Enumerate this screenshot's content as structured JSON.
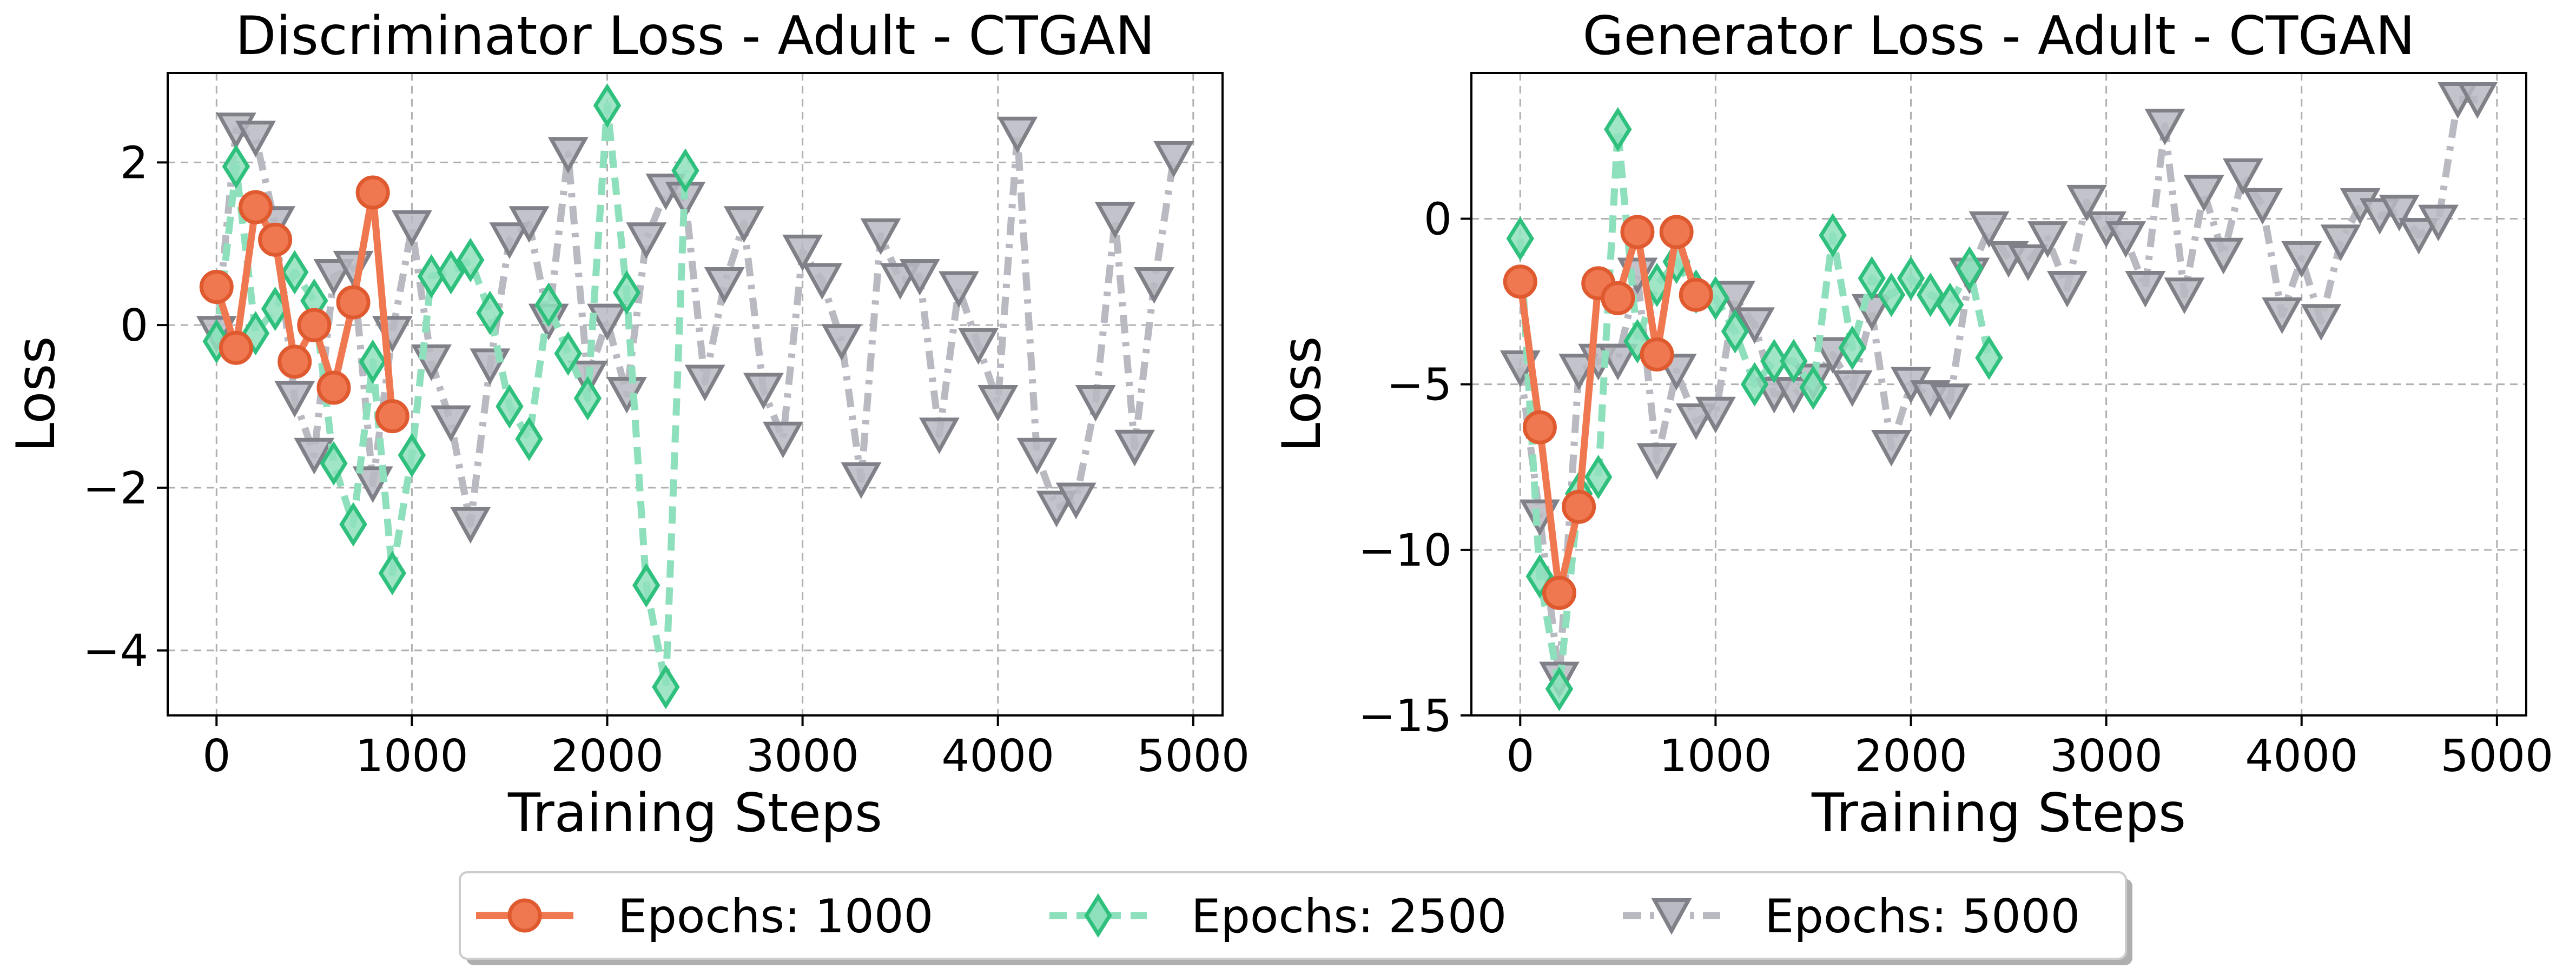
{
  "colors": {
    "e1000": "#f07850",
    "e1000_edge": "#e05a30",
    "e2500": "#8ee0bc",
    "e2500_edge": "#2ec07c",
    "e5000": "#b9b9c2",
    "e5000_edge": "#808088"
  },
  "legend": {
    "placement": "bottom-center",
    "items": [
      {
        "label": "Epochs: 1000",
        "marker": "circle",
        "line": "solid",
        "color_key": "e1000"
      },
      {
        "label": "Epochs: 2500",
        "marker": "diamond",
        "line": "dashed",
        "color_key": "e2500"
      },
      {
        "label": "Epochs: 5000",
        "marker": "triangle-down",
        "line": "dash-dot",
        "color_key": "e5000"
      }
    ]
  },
  "chart_data": [
    {
      "type": "line",
      "title": "Discriminator Loss - Adult - CTGAN",
      "xlabel": "Training Steps",
      "ylabel": "Loss",
      "xlim": [
        -250,
        5150
      ],
      "ylim": [
        -4.8,
        3.1
      ],
      "xticks": [
        0,
        1000,
        2000,
        3000,
        4000,
        5000
      ],
      "xtick_labels": [
        "0",
        "1000",
        "2000",
        "3000",
        "4000",
        "5000"
      ],
      "yticks": [
        2,
        0,
        -2,
        -4
      ],
      "ytick_labels": [
        "2",
        "0",
        "−2",
        "−4"
      ],
      "grid": true,
      "series": [
        {
          "name": "Epochs: 1000",
          "color_key": "e1000",
          "marker": "circle",
          "line": "solid",
          "x": [
            0,
            100,
            200,
            300,
            400,
            500,
            600,
            700,
            800,
            900
          ],
          "y": [
            0.47,
            -0.28,
            1.45,
            1.05,
            -0.45,
            0.0,
            -0.77,
            0.28,
            1.63,
            -1.12
          ]
        },
        {
          "name": "Epochs: 2500",
          "color_key": "e2500",
          "marker": "diamond",
          "line": "dashed",
          "x": [
            0,
            100,
            200,
            300,
            400,
            500,
            600,
            700,
            800,
            900,
            1000,
            1100,
            1200,
            1300,
            1400,
            1500,
            1600,
            1700,
            1800,
            1900,
            2000,
            2100,
            2200,
            2300,
            2400
          ],
          "y": [
            -0.2,
            1.95,
            -0.1,
            0.2,
            0.65,
            0.3,
            -1.7,
            -2.45,
            -0.45,
            -3.05,
            -1.6,
            0.6,
            0.65,
            0.8,
            0.15,
            -1.0,
            -1.4,
            0.25,
            -0.35,
            -0.9,
            2.7,
            0.4,
            -3.2,
            -4.45,
            1.9
          ]
        },
        {
          "name": "Epochs: 5000",
          "color_key": "e5000",
          "marker": "triangle-down",
          "line": "dash-dot",
          "x": [
            0,
            100,
            200,
            300,
            400,
            500,
            600,
            700,
            800,
            900,
            1000,
            1100,
            1200,
            1300,
            1400,
            1500,
            1600,
            1700,
            1800,
            1900,
            2000,
            2100,
            2200,
            2300,
            2400,
            2500,
            2600,
            2700,
            2800,
            2900,
            3000,
            3100,
            3200,
            3300,
            3400,
            3500,
            3600,
            3700,
            3800,
            3900,
            4000,
            4100,
            4200,
            4300,
            4400,
            4500,
            4600,
            4700,
            4800,
            4900
          ],
          "y": [
            -0.1,
            2.4,
            2.3,
            1.25,
            -0.9,
            -1.6,
            0.6,
            0.7,
            -1.95,
            -0.1,
            1.2,
            -0.45,
            -1.2,
            -2.45,
            -0.5,
            1.05,
            1.25,
            0.05,
            2.1,
            -0.65,
            0.05,
            -0.85,
            1.05,
            1.65,
            1.55,
            -0.7,
            0.5,
            1.25,
            -0.8,
            -1.4,
            0.9,
            0.55,
            -0.2,
            -1.9,
            1.1,
            0.55,
            0.6,
            -1.35,
            0.45,
            -0.25,
            -0.95,
            2.35,
            -1.6,
            -2.25,
            -2.15,
            -0.95,
            1.3,
            -1.5,
            0.5,
            2.05
          ]
        }
      ]
    },
    {
      "type": "line",
      "title": "Generator Loss - Adult - CTGAN",
      "xlabel": "Training Steps",
      "ylabel": "Loss",
      "xlim": [
        -250,
        5150
      ],
      "ylim": [
        -15,
        4.4
      ],
      "xticks": [
        0,
        1000,
        2000,
        3000,
        4000,
        5000
      ],
      "xtick_labels": [
        "0",
        "1000",
        "2000",
        "3000",
        "4000",
        "5000"
      ],
      "yticks": [
        0,
        -5,
        -10,
        -15
      ],
      "ytick_labels": [
        "0",
        "−5",
        "−10",
        "−15"
      ],
      "grid": true,
      "series": [
        {
          "name": "Epochs: 1000",
          "color_key": "e1000",
          "marker": "circle",
          "line": "solid",
          "x": [
            0,
            100,
            200,
            300,
            400,
            500,
            600,
            700,
            800,
            900
          ],
          "y": [
            -1.9,
            -6.3,
            -11.3,
            -8.7,
            -1.95,
            -2.4,
            -0.4,
            -4.1,
            -0.4,
            -2.3
          ]
        },
        {
          "name": "Epochs: 2500",
          "color_key": "e2500",
          "marker": "diamond",
          "line": "dashed",
          "x": [
            0,
            100,
            200,
            300,
            400,
            500,
            600,
            700,
            800,
            900,
            1000,
            1100,
            1200,
            1300,
            1400,
            1500,
            1600,
            1700,
            1800,
            1900,
            2000,
            2100,
            2200,
            2300,
            2400
          ],
          "y": [
            -0.6,
            -10.8,
            -14.2,
            -8.3,
            -7.8,
            2.7,
            -3.7,
            -2.0,
            -1.3,
            -2.2,
            -2.4,
            -3.4,
            -5.0,
            -4.3,
            -4.3,
            -5.1,
            -0.5,
            -3.9,
            -1.8,
            -2.3,
            -1.8,
            -2.3,
            -2.6,
            -1.5,
            -4.2
          ]
        },
        {
          "name": "Epochs: 5000",
          "color_key": "e5000",
          "marker": "triangle-down",
          "line": "dash-dot",
          "x": [
            0,
            100,
            200,
            300,
            400,
            500,
            600,
            700,
            800,
            900,
            1000,
            1100,
            1200,
            1300,
            1400,
            1500,
            1600,
            1700,
            1800,
            1900,
            2000,
            2100,
            2200,
            2300,
            2400,
            2500,
            2600,
            2700,
            2800,
            2900,
            3000,
            3100,
            3200,
            3300,
            3400,
            3500,
            3600,
            3700,
            3800,
            3900,
            4000,
            4100,
            4200,
            4300,
            4400,
            4500,
            4600,
            4700,
            4800,
            4900
          ],
          "y": [
            -4.5,
            -9.0,
            -13.9,
            -4.6,
            -4.3,
            -4.3,
            -1.7,
            -7.3,
            -4.6,
            -6.1,
            -5.9,
            -2.4,
            -3.2,
            -5.3,
            -5.3,
            -4.9,
            -4.1,
            -5.1,
            -2.8,
            -6.9,
            -5.0,
            -5.4,
            -5.5,
            -1.7,
            -0.3,
            -1.2,
            -1.3,
            -0.6,
            -2.1,
            0.5,
            -0.3,
            -0.6,
            -2.1,
            2.8,
            -2.3,
            0.8,
            -1.1,
            1.3,
            0.4,
            -2.9,
            -1.2,
            -3.1,
            -0.7,
            0.4,
            0.1,
            0.2,
            -0.5,
            -0.1,
            3.6,
            3.6
          ]
        }
      ]
    }
  ]
}
